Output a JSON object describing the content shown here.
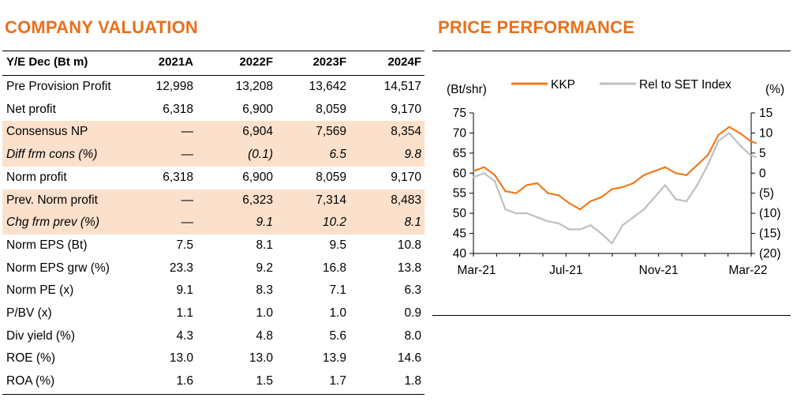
{
  "valuation": {
    "title": "COMPANY VALUATION",
    "header": [
      "Y/E Dec (Bt m)",
      "2021A",
      "2022F",
      "2023F",
      "2024F"
    ],
    "rows": [
      {
        "label": "Pre Provision Profit",
        "values": [
          "12,998",
          "13,208",
          "13,642",
          "14,517"
        ],
        "highlight": false,
        "italic": false
      },
      {
        "label": "Net profit",
        "values": [
          "6,318",
          "6,900",
          "8,059",
          "9,170"
        ],
        "highlight": false,
        "italic": false
      },
      {
        "label": "Consensus NP",
        "values": [
          "—",
          "6,904",
          "7,569",
          "8,354"
        ],
        "highlight": true,
        "italic": false
      },
      {
        "label": "Diff frm cons (%)",
        "values": [
          "—",
          "(0.1)",
          "6.5",
          "9.8"
        ],
        "highlight": true,
        "italic": true
      },
      {
        "label": "Norm profit",
        "values": [
          "6,318",
          "6,900",
          "8,059",
          "9,170"
        ],
        "highlight": false,
        "italic": false
      },
      {
        "label": "Prev. Norm profit",
        "values": [
          "—",
          "6,323",
          "7,314",
          "8,483"
        ],
        "highlight": true,
        "italic": false
      },
      {
        "label": "Chg frm prev (%)",
        "values": [
          "—",
          "9.1",
          "10.2",
          "8.1"
        ],
        "highlight": true,
        "italic": true
      },
      {
        "label": "Norm EPS (Bt)",
        "values": [
          "7.5",
          "8.1",
          "9.5",
          "10.8"
        ],
        "highlight": false,
        "italic": false
      },
      {
        "label": "Norm EPS grw (%)",
        "values": [
          "23.3",
          "9.2",
          "16.8",
          "13.8"
        ],
        "highlight": false,
        "italic": false
      },
      {
        "label": "Norm PE (x)",
        "values": [
          "9.1",
          "8.3",
          "7.1",
          "6.3"
        ],
        "highlight": false,
        "italic": false
      },
      {
        "label": "P/BV (x)",
        "values": [
          "1.1",
          "1.0",
          "1.0",
          "0.9"
        ],
        "highlight": false,
        "italic": false
      },
      {
        "label": "Div yield (%)",
        "values": [
          "4.3",
          "4.8",
          "5.6",
          "8.0"
        ],
        "highlight": false,
        "italic": false
      },
      {
        "label": "ROE (%)",
        "values": [
          "13.0",
          "13.0",
          "13.9",
          "14.6"
        ],
        "highlight": false,
        "italic": false
      },
      {
        "label": "ROA (%)",
        "values": [
          "1.6",
          "1.5",
          "1.7",
          "1.8"
        ],
        "highlight": false,
        "italic": false
      }
    ],
    "highlight_color": "#fbe1cc"
  },
  "price": {
    "title": "PRICE PERFORMANCE"
  },
  "chart_data": {
    "type": "line",
    "title": "PRICE PERFORMANCE",
    "ylabel_left": "(Bt/shr)",
    "ylabel_right": "(%)",
    "x_ticks": [
      "Mar-21",
      "Jul-21",
      "Nov-21",
      "Mar-22"
    ],
    "ylim_left": [
      40,
      75
    ],
    "yticks_left": [
      "75",
      "70",
      "65",
      "60",
      "55",
      "50",
      "45",
      "40"
    ],
    "ylim_right": [
      -20,
      15
    ],
    "yticks_right": [
      "15",
      "10",
      "5",
      "0",
      "(5)",
      "(10)",
      "(15)",
      "(20)"
    ],
    "legend_position": "top",
    "grid": false,
    "series": [
      {
        "name": "KKP",
        "axis": "left",
        "color": "#f07a1e",
        "x": [
          "2021-03-01",
          "2021-03-15",
          "2021-03-29",
          "2021-04-12",
          "2021-04-26",
          "2021-05-10",
          "2021-05-24",
          "2021-06-07",
          "2021-06-21",
          "2021-07-05",
          "2021-07-19",
          "2021-08-02",
          "2021-08-16",
          "2021-08-30",
          "2021-09-13",
          "2021-09-27",
          "2021-10-11",
          "2021-10-25",
          "2021-11-08",
          "2021-11-22",
          "2021-12-06",
          "2021-12-20",
          "2022-01-03",
          "2022-01-17",
          "2022-01-31",
          "2022-02-14",
          "2022-02-28",
          "2022-03-07"
        ],
        "values": [
          60.5,
          61.5,
          59.5,
          55.5,
          55.0,
          57.0,
          57.5,
          55.0,
          54.5,
          52.5,
          51.0,
          53.0,
          54.0,
          56.0,
          56.5,
          57.5,
          59.5,
          60.5,
          61.5,
          60.0,
          59.5,
          62.0,
          64.5,
          69.5,
          71.5,
          70.0,
          68.0,
          67.5
        ]
      },
      {
        "name": "Rel to SET Index",
        "axis": "right",
        "color": "#bfbfbf",
        "x": [
          "2021-03-01",
          "2021-03-15",
          "2021-03-29",
          "2021-04-12",
          "2021-04-26",
          "2021-05-10",
          "2021-05-24",
          "2021-06-07",
          "2021-06-21",
          "2021-07-05",
          "2021-07-19",
          "2021-08-02",
          "2021-08-16",
          "2021-08-30",
          "2021-09-13",
          "2021-09-27",
          "2021-10-11",
          "2021-10-25",
          "2021-11-08",
          "2021-11-22",
          "2021-12-06",
          "2021-12-20",
          "2022-01-03",
          "2022-01-17",
          "2022-01-31",
          "2022-02-14",
          "2022-02-28",
          "2022-03-07"
        ],
        "values": [
          -1.0,
          0.0,
          -2.0,
          -9.0,
          -10.0,
          -10.0,
          -11.0,
          -12.0,
          -12.5,
          -14.0,
          -14.0,
          -13.0,
          -15.0,
          -17.5,
          -13.0,
          -11.0,
          -9.0,
          -6.0,
          -3.0,
          -6.5,
          -7.0,
          -3.0,
          2.0,
          8.0,
          10.0,
          7.0,
          4.5,
          4.0
        ]
      }
    ]
  }
}
